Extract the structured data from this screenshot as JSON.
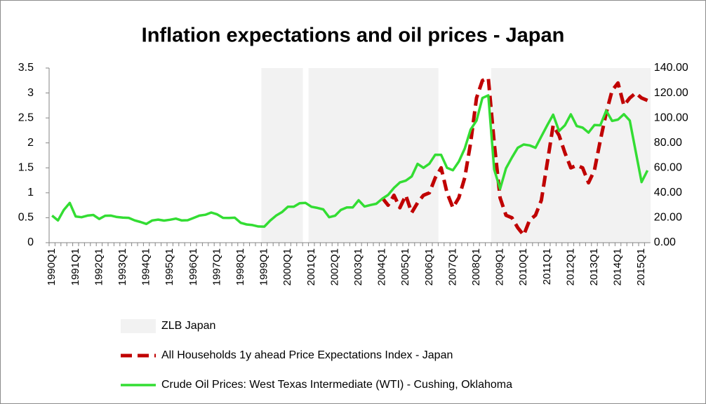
{
  "chart_data": {
    "type": "line",
    "title": "Inflation expectations and oil prices - Japan",
    "categories": [
      "1990Q1",
      null,
      null,
      null,
      "1991Q1",
      null,
      null,
      null,
      "1992Q1",
      null,
      null,
      null,
      "1993Q1",
      null,
      null,
      null,
      "1994Q1",
      null,
      null,
      null,
      "1995Q1",
      null,
      null,
      null,
      "1996Q1",
      null,
      null,
      null,
      "1997Q1",
      null,
      null,
      null,
      "1998Q1",
      null,
      null,
      null,
      "1999Q1",
      null,
      null,
      null,
      "2000Q1",
      null,
      null,
      null,
      "2001Q1",
      null,
      null,
      null,
      "2002Q1",
      null,
      null,
      null,
      "2003Q1",
      null,
      null,
      null,
      "2004Q1",
      null,
      null,
      null,
      "2005Q1",
      null,
      null,
      null,
      "2006Q1",
      null,
      null,
      null,
      "2007Q1",
      null,
      null,
      null,
      "2008Q1",
      null,
      null,
      null,
      "2009Q1",
      null,
      null,
      null,
      "2010Q1",
      null,
      null,
      null,
      "2011Q1",
      null,
      null,
      null,
      "2012Q1",
      null,
      null,
      null,
      "2013Q1",
      null,
      null,
      null,
      "2014Q1",
      null,
      null,
      null,
      "2015Q1",
      null
    ],
    "series": [
      {
        "name": "ZLB Japan",
        "type": "bar",
        "color": "#f2f2f2",
        "values": [
          0,
          0,
          0,
          0,
          0,
          0,
          0,
          0,
          0,
          0,
          0,
          0,
          0,
          0,
          0,
          0,
          0,
          0,
          0,
          0,
          0,
          0,
          0,
          0,
          0,
          0,
          0,
          0,
          0,
          0,
          0,
          0,
          0,
          0,
          0,
          0,
          3.5,
          3.5,
          3.5,
          3.5,
          3.5,
          3.5,
          3.5,
          0,
          3.5,
          3.5,
          3.5,
          3.5,
          3.5,
          3.5,
          3.5,
          3.5,
          3.5,
          3.5,
          3.5,
          3.5,
          3.5,
          3.5,
          3.5,
          3.5,
          3.5,
          3.5,
          3.5,
          3.5,
          3.5,
          3.5,
          0,
          0,
          0,
          0,
          0,
          0,
          0,
          0,
          0,
          3.5,
          3.5,
          3.5,
          3.5,
          3.5,
          3.5,
          3.5,
          3.5,
          3.5,
          3.5,
          3.5,
          3.5,
          3.5,
          3.5,
          3.5,
          3.5,
          3.5,
          3.5,
          3.5,
          3.5,
          3.5,
          3.5,
          3.5,
          3.5,
          3.5,
          3.5,
          3.5
        ]
      },
      {
        "name": "All Households 1y ahead Price Expectations Index - Japan",
        "type": "line",
        "color": "#c00000",
        "dashed": true,
        "values": [
          null,
          null,
          null,
          null,
          null,
          null,
          null,
          null,
          null,
          null,
          null,
          null,
          null,
          null,
          null,
          null,
          null,
          null,
          null,
          null,
          null,
          null,
          null,
          null,
          null,
          null,
          null,
          null,
          null,
          null,
          null,
          null,
          null,
          null,
          null,
          null,
          null,
          null,
          null,
          null,
          null,
          null,
          null,
          null,
          null,
          null,
          null,
          null,
          null,
          null,
          null,
          null,
          null,
          null,
          null,
          null,
          0.9,
          0.75,
          0.95,
          0.7,
          0.95,
          0.6,
          0.8,
          0.95,
          1.0,
          1.3,
          1.5,
          1.0,
          0.7,
          0.9,
          1.3,
          2.0,
          2.9,
          3.25,
          3.3,
          2.0,
          0.9,
          0.55,
          0.5,
          0.3,
          0.15,
          0.45,
          0.55,
          0.85,
          1.6,
          2.35,
          2.15,
          1.8,
          1.5,
          1.55,
          1.5,
          1.2,
          1.45,
          2.05,
          2.6,
          3.05,
          3.2,
          2.75,
          2.9,
          3.0,
          2.9,
          2.85
        ]
      },
      {
        "name": "Crude Oil Prices: West Texas Intermediate (WTI) - Cushing, Oklahoma",
        "type": "line",
        "color": "#33dd33",
        "axis": "y2",
        "values": [
          21.7,
          17.8,
          26.3,
          31.9,
          21.0,
          20.4,
          21.7,
          22.2,
          19.0,
          21.6,
          21.7,
          20.6,
          20.1,
          19.9,
          17.9,
          16.6,
          15.0,
          17.8,
          18.5,
          17.7,
          18.4,
          19.3,
          17.8,
          18.0,
          19.8,
          21.7,
          22.4,
          24.2,
          22.7,
          19.9,
          19.8,
          20.0,
          15.9,
          14.6,
          14.1,
          13.0,
          12.9,
          17.7,
          21.7,
          24.5,
          28.8,
          28.8,
          31.6,
          31.9,
          28.8,
          27.9,
          26.7,
          20.4,
          21.6,
          26.3,
          28.3,
          28.2,
          34.0,
          29.0,
          30.2,
          31.2,
          35.2,
          38.3,
          43.9,
          48.3,
          49.7,
          53.1,
          63.2,
          60.0,
          63.3,
          70.5,
          70.4,
          60.0,
          58.1,
          65.0,
          75.4,
          90.7,
          97.9,
          116.0,
          118.1,
          58.7,
          43.1,
          59.6,
          68.2,
          76.1,
          78.7,
          78.0,
          76.1,
          85.2,
          94.1,
          102.6,
          89.5,
          94.1,
          102.9,
          93.5,
          92.2,
          88.2,
          94.3,
          94.1,
          105.8,
          97.6,
          98.7,
          103.0,
          97.9,
          73.2,
          48.6,
          57.9
        ]
      }
    ],
    "ylim": [
      0,
      3.5
    ],
    "yticks": [
      0,
      0.5,
      1,
      1.5,
      2,
      2.5,
      3,
      3.5
    ],
    "y2lim": [
      0,
      140
    ],
    "y2ticks": [
      {
        "value": 0,
        "label": "0.00"
      },
      {
        "value": 20,
        "label": "20.00"
      },
      {
        "value": 40,
        "label": "40.00"
      },
      {
        "value": 60,
        "label": "60.00"
      },
      {
        "value": 80,
        "label": "80.00"
      },
      {
        "value": 100,
        "label": "100.00"
      },
      {
        "value": 120,
        "label": "120.00"
      },
      {
        "value": 140,
        "label": "140.00"
      }
    ],
    "legend": "bottom"
  }
}
